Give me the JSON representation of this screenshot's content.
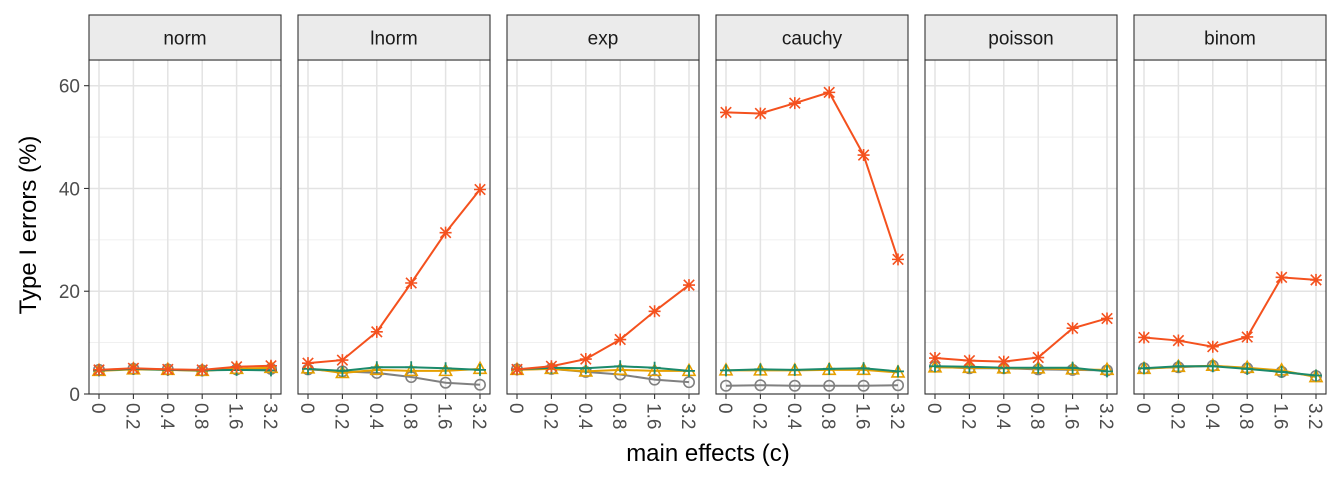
{
  "chart_data": {
    "type": "line",
    "xlabel": "main effects (c)",
    "ylabel": "Type I errors (%)",
    "ylim": [
      0,
      65
    ],
    "yticks": [
      0,
      20,
      40,
      60
    ],
    "categories": [
      "0",
      "0.2",
      "0.4",
      "0.8",
      "1.6",
      "3.2"
    ],
    "grid": true,
    "legend": "none",
    "series_styles": [
      {
        "color": "#808080",
        "marker": "circle"
      },
      {
        "color": "#E69F00",
        "marker": "triangle"
      },
      {
        "color": "#1B8A6B",
        "marker": "plus"
      },
      {
        "color": "#F4511E",
        "marker": "asterisk"
      }
    ],
    "panels": [
      {
        "label": "norm",
        "series": [
          {
            "values": [
              4.7,
              4.9,
              4.8,
              4.6,
              4.8,
              4.9
            ]
          },
          {
            "values": [
              4.5,
              4.8,
              4.7,
              4.5,
              4.9,
              5.1
            ]
          },
          {
            "values": [
              4.6,
              4.9,
              4.7,
              4.6,
              4.7,
              4.6
            ]
          },
          {
            "values": [
              4.7,
              5.0,
              4.8,
              4.7,
              5.3,
              5.5
            ]
          }
        ]
      },
      {
        "label": "lnorm",
        "series": [
          {
            "values": [
              4.8,
              4.4,
              4.1,
              3.3,
              2.2,
              1.8
            ]
          },
          {
            "values": [
              5.0,
              4.1,
              4.7,
              4.5,
              4.5,
              4.9
            ]
          },
          {
            "values": [
              4.9,
              4.5,
              5.2,
              5.2,
              5.0,
              4.7
            ]
          },
          {
            "values": [
              6.0,
              6.6,
              12.1,
              21.6,
              31.4,
              39.8
            ]
          }
        ]
      },
      {
        "label": "exp",
        "series": [
          {
            "values": [
              4.8,
              4.9,
              4.3,
              3.8,
              2.8,
              2.3
            ]
          },
          {
            "values": [
              4.7,
              4.9,
              4.4,
              4.7,
              4.5,
              4.5
            ]
          },
          {
            "values": [
              4.8,
              5.1,
              5.0,
              5.4,
              5.1,
              4.5
            ]
          },
          {
            "values": [
              4.8,
              5.4,
              6.8,
              10.6,
              16.1,
              21.2
            ]
          }
        ]
      },
      {
        "label": "cauchy",
        "series": [
          {
            "values": [
              1.6,
              1.7,
              1.6,
              1.6,
              1.6,
              1.7
            ]
          },
          {
            "values": [
              4.6,
              4.6,
              4.6,
              4.7,
              4.7,
              4.2
            ]
          },
          {
            "values": [
              4.6,
              4.8,
              4.7,
              4.9,
              5.0,
              4.4
            ]
          },
          {
            "values": [
              54.8,
              54.6,
              56.6,
              58.7,
              46.5,
              26.2
            ]
          }
        ]
      },
      {
        "label": "poisson",
        "series": [
          {
            "values": [
              5.3,
              5.0,
              5.0,
              4.8,
              4.7,
              4.6
            ]
          },
          {
            "values": [
              5.2,
              5.1,
              5.0,
              5.0,
              4.8,
              4.7
            ]
          },
          {
            "values": [
              5.4,
              5.3,
              5.1,
              5.1,
              5.1,
              4.4
            ]
          },
          {
            "values": [
              7.0,
              6.5,
              6.3,
              7.1,
              12.8,
              14.7
            ]
          }
        ]
      },
      {
        "label": "binom",
        "series": [
          {
            "values": [
              5.0,
              5.2,
              5.5,
              5.0,
              4.3,
              3.5
            ]
          },
          {
            "values": [
              4.9,
              5.3,
              5.5,
              5.1,
              4.6,
              3.3
            ]
          },
          {
            "values": [
              5.0,
              5.4,
              5.4,
              4.9,
              4.3,
              3.6
            ]
          },
          {
            "values": [
              11.0,
              10.4,
              9.2,
              11.1,
              22.7,
              22.2
            ]
          }
        ]
      }
    ]
  }
}
